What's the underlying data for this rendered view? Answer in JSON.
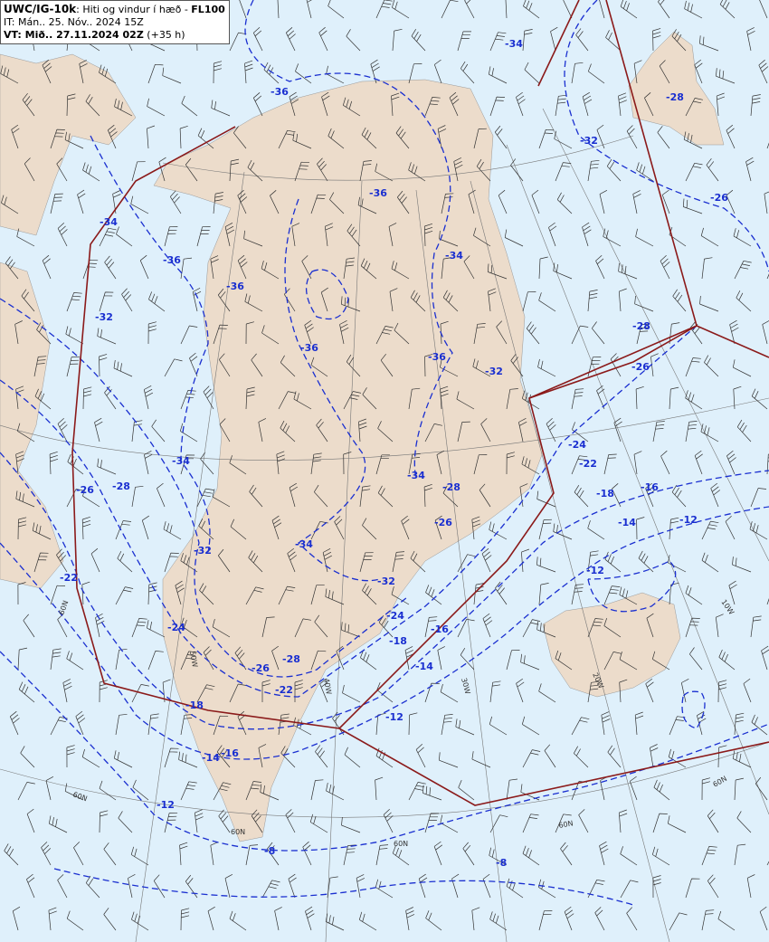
{
  "header": {
    "product": "UWC/IG-10k",
    "description": ": Hiti og vindur í hæð - ",
    "level": "FL100",
    "issue_time": "IT: Mán.. 25. Nóv.. 2024 15Z",
    "valid_label": "VT: Mið.. 27.11.2024 02Z",
    "valid_offset": " (+35 h)"
  },
  "colors": {
    "ocean": "#dff0fb",
    "land": "#ecdccb",
    "isotherm": "#1a2fd0",
    "boundary": "#8b1a1a",
    "grid": "#777777",
    "barb": "#333333"
  },
  "isotherm_labels": [
    "-34",
    "-36",
    "-32",
    "-28",
    "-26",
    "-34",
    "-36",
    "-36",
    "-36",
    "-34",
    "-32",
    "-36",
    "-36",
    "-32",
    "-28",
    "-26",
    "-24",
    "-22",
    "-34",
    "-34",
    "-28",
    "-26",
    "-28",
    "-18",
    "-16",
    "-14",
    "-12",
    "-26",
    "-32",
    "-34",
    "-32",
    "-12",
    "-22",
    "-24",
    "-24",
    "-16",
    "-18",
    "-28",
    "-26",
    "-14",
    "-22",
    "-18",
    "-12",
    "-16",
    "-14",
    "-12",
    "-8",
    "-8"
  ],
  "grid_labels": [
    "60N",
    "60N",
    "60N",
    "60N",
    "60N",
    "60N",
    "50W",
    "40W",
    "30W",
    "20W",
    "10W"
  ]
}
